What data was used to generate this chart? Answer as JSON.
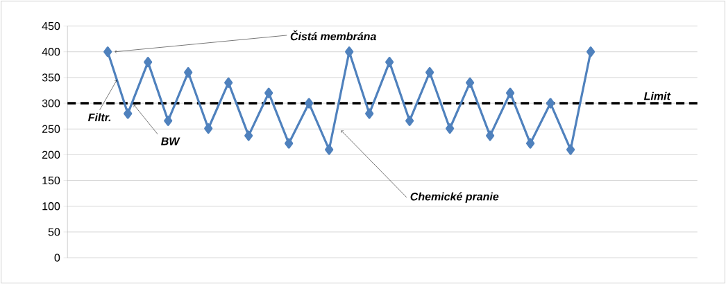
{
  "chart_data": {
    "type": "line",
    "categories": [
      null,
      null,
      null,
      null,
      null,
      null,
      null,
      null,
      null,
      null,
      null,
      null,
      null,
      null,
      null,
      null,
      null,
      null,
      null,
      null,
      null,
      null,
      null,
      null,
      null
    ],
    "values": [
      400,
      280,
      380,
      266,
      360,
      251,
      340,
      237,
      320,
      222,
      300,
      210,
      400,
      280,
      380,
      266,
      360,
      251,
      340,
      237,
      320,
      222,
      300,
      210,
      400
    ],
    "color": "#4f81bd",
    "marker": "diamond",
    "line_style": "solid",
    "ylim": [
      0,
      450
    ],
    "yticks": [
      0,
      50,
      100,
      150,
      200,
      250,
      300,
      350,
      400,
      450
    ],
    "grid": "y",
    "tick_labels": "y",
    "ref_lines": [
      {
        "axis": "y",
        "value": 300,
        "label": "Limit",
        "color": "#000000",
        "line_style": "dashed"
      }
    ],
    "annotations": [
      "Čistá membrána",
      "Filtr.",
      "BW",
      "Chemické pranie"
    ]
  }
}
